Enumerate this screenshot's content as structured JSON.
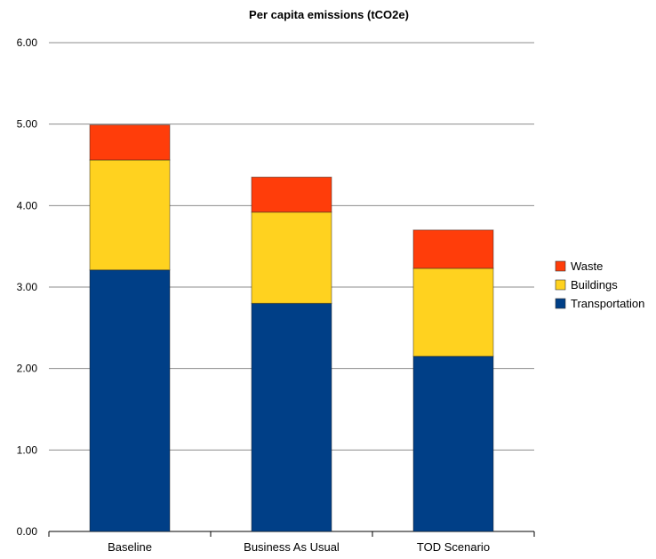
{
  "chart_data": {
    "type": "bar",
    "stacked": true,
    "title": "Per capita emissions (tCO2e)",
    "xlabel": "",
    "ylabel": "",
    "categories": [
      "Baseline",
      "Business As Usual",
      "TOD Scenario"
    ],
    "series": [
      {
        "name": "Transportation",
        "color": "#003F87",
        "values": [
          3.21,
          2.8,
          2.15
        ]
      },
      {
        "name": "Buildings",
        "color": "#FFD21F",
        "values": [
          1.35,
          1.12,
          1.08
        ]
      },
      {
        "name": "Waste",
        "color": "#FF3D0A",
        "values": [
          0.43,
          0.43,
          0.47
        ]
      }
    ],
    "ylim": [
      0,
      6
    ],
    "yticks": [
      "0.00",
      "1.00",
      "2.00",
      "3.00",
      "4.00",
      "5.00",
      "6.00"
    ],
    "grid": "horizontal",
    "legend_position": "right",
    "legend_order": [
      "Waste",
      "Buildings",
      "Transportation"
    ]
  }
}
